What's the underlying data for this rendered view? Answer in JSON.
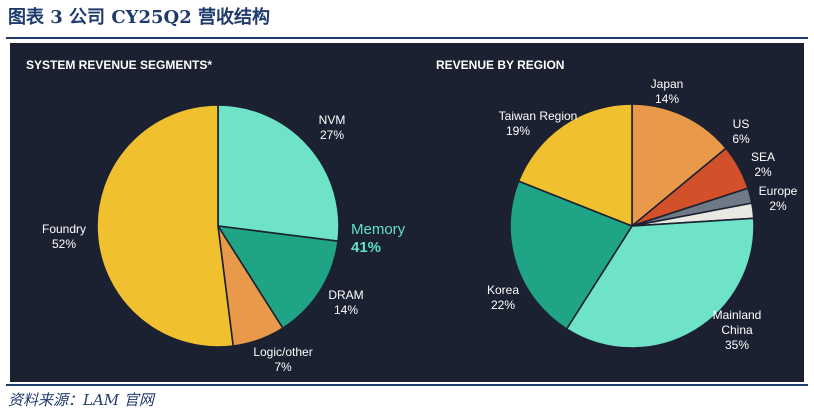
{
  "figure": {
    "title": "图表 3   公司 CY25Q2 营收结构",
    "source": "资料来源：LAM 官网"
  },
  "colors": {
    "title": "#1f3a6d",
    "panel_background": "#1b2130",
    "memory_highlight": "#5fe0c8",
    "slice_border": "#1b2130"
  },
  "chart_data": [
    {
      "type": "pie",
      "title": "SYSTEM REVENUE SEGMENTS*",
      "start_angle_deg": 0,
      "direction": "clockwise",
      "slices": [
        {
          "label": "NVM",
          "value": 27,
          "value_text": "27%",
          "color": "#6ee3c8"
        },
        {
          "label": "DRAM",
          "value": 14,
          "value_text": "14%",
          "color": "#1fa585"
        },
        {
          "label": "Logic/other",
          "value": 7,
          "value_text": "7%",
          "color": "#e8994a"
        },
        {
          "label": "Foundry",
          "value": 52,
          "value_text": "52%",
          "color": "#f1c02e"
        }
      ],
      "annotation": {
        "label": "Memory",
        "value_text": "41%"
      }
    },
    {
      "type": "pie",
      "title": "REVENUE BY REGION",
      "start_angle_deg": 0,
      "direction": "clockwise",
      "slices": [
        {
          "label": "Japan",
          "value": 14,
          "value_text": "14%",
          "color": "#e8994a"
        },
        {
          "label": "US",
          "value": 6,
          "value_text": "6%",
          "color": "#d2502a"
        },
        {
          "label": "SEA",
          "value": 2,
          "value_text": "2%",
          "color": "#6f7a86"
        },
        {
          "label": "Europe",
          "value": 2,
          "value_text": "2%",
          "color": "#e9e9e4"
        },
        {
          "label": "Mainland China",
          "label_lines": [
            "Mainland",
            "China"
          ],
          "value": 35,
          "value_text": "35%",
          "color": "#6ee3c8"
        },
        {
          "label": "Korea",
          "value": 22,
          "value_text": "22%",
          "color": "#1fa585"
        },
        {
          "label": "Taiwan Region",
          "value": 19,
          "value_text": "19%",
          "color": "#f1c02e"
        }
      ]
    }
  ]
}
